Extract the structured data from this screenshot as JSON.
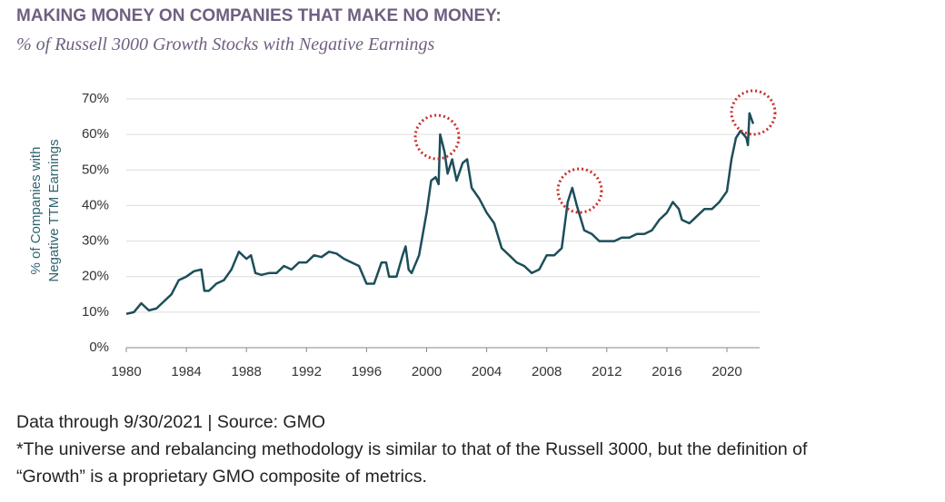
{
  "chart_data": {
    "type": "line",
    "title": "MAKING MONEY ON COMPANIES THAT MAKE NO MONEY:",
    "subtitle": "% of Russell 3000 Growth Stocks with Negative Earnings",
    "ylabel": [
      "% of Companies with",
      "Negative TTM Earnings"
    ],
    "source": "Data through 9/30/2021 | Source: GMO",
    "note": [
      "*The universe and rebalancing methodology is similar to that of the Russell 3000, but the definition of",
      "“Growth” is a proprietary GMO composite of metrics."
    ],
    "color": "#1c4e5a",
    "x": [
      1980.0,
      1980.5,
      1981.0,
      1981.5,
      1982.0,
      1982.5,
      1983.0,
      1983.5,
      1984.0,
      1984.5,
      1985.0,
      1985.2,
      1985.5,
      1986.0,
      1986.5,
      1987.0,
      1987.5,
      1988.0,
      1988.3,
      1988.6,
      1989.0,
      1989.5,
      1990.0,
      1990.5,
      1991.0,
      1991.5,
      1992.0,
      1992.5,
      1993.0,
      1993.5,
      1994.0,
      1994.5,
      1995.0,
      1995.5,
      1996.0,
      1996.5,
      1997.0,
      1997.3,
      1997.5,
      1998.0,
      1998.4,
      1998.6,
      1998.8,
      1999.0,
      1999.5,
      2000.0,
      2000.3,
      2000.6,
      2000.8,
      2000.9,
      2001.2,
      2001.4,
      2001.7,
      2002.0,
      2002.4,
      2002.7,
      2003.0,
      2003.5,
      2004.0,
      2004.5,
      2005.0,
      2005.5,
      2006.0,
      2006.5,
      2007.0,
      2007.5,
      2008.0,
      2008.5,
      2009.0,
      2009.4,
      2009.7,
      2010.0,
      2010.5,
      2011.0,
      2011.5,
      2012.0,
      2012.5,
      2013.0,
      2013.5,
      2014.0,
      2014.5,
      2015.0,
      2015.5,
      2016.0,
      2016.4,
      2016.8,
      2017.0,
      2017.5,
      2018.0,
      2018.5,
      2019.0,
      2019.5,
      2020.0,
      2020.3,
      2020.6,
      2020.9,
      2021.1,
      2021.3,
      2021.4,
      2021.5,
      2021.75
    ],
    "values": [
      9.5,
      10,
      12.5,
      10.5,
      11,
      13,
      15,
      19,
      20,
      21.5,
      22,
      16,
      16,
      18,
      19,
      22,
      27,
      25,
      26,
      21,
      20.5,
      21,
      21,
      23,
      22,
      24,
      24,
      26,
      25.5,
      27,
      26.5,
      25,
      24,
      23,
      18,
      18,
      24,
      24,
      20,
      20,
      26,
      28.5,
      22,
      21,
      26,
      38,
      47,
      48,
      46,
      60,
      55,
      49,
      53,
      47,
      52,
      53,
      45,
      42,
      38,
      35,
      28,
      26,
      24,
      23,
      21,
      22,
      26,
      26,
      28,
      41,
      45,
      40,
      33,
      32,
      30,
      30,
      30,
      31,
      31,
      32,
      32,
      33,
      36,
      38,
      41,
      39,
      36,
      35,
      37,
      39,
      39,
      41,
      44,
      53,
      59,
      61,
      60,
      59,
      57,
      66,
      63
    ],
    "xlim": [
      1980,
      2021.75
    ],
    "ylim": [
      0,
      70
    ],
    "xticks": [
      1980,
      1984,
      1988,
      1992,
      1996,
      2000,
      2004,
      2008,
      2012,
      2016,
      2020
    ],
    "yticks": [
      {
        "value": 0,
        "label": "0%"
      },
      {
        "value": 10,
        "label": "10%"
      },
      {
        "value": 20,
        "label": "20%"
      },
      {
        "value": 30,
        "label": "30%"
      },
      {
        "value": 40,
        "label": "40%"
      },
      {
        "value": 50,
        "label": "50%"
      },
      {
        "value": 60,
        "label": "60%"
      },
      {
        "value": 70,
        "label": "70%"
      }
    ],
    "grid": true
  }
}
